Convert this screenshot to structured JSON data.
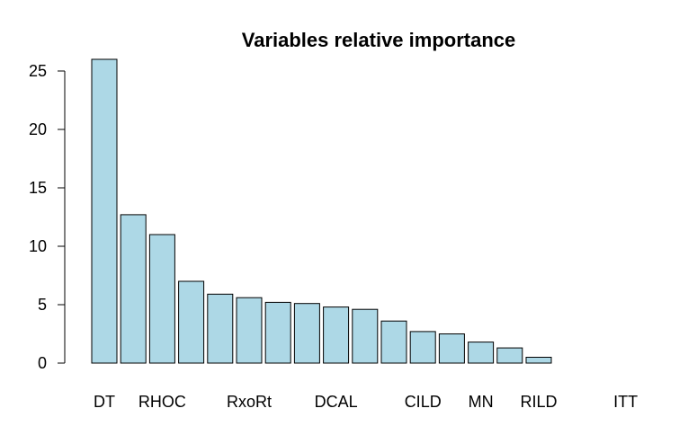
{
  "chart_data": {
    "type": "bar",
    "title": "Variables relative importance",
    "xlabel": "",
    "ylabel": "",
    "ylim": [
      0,
      26
    ],
    "yticks": [
      0,
      5,
      10,
      15,
      20,
      25
    ],
    "grid": false,
    "bar_color": "#add8e6",
    "bar_border_color": "#000000",
    "categories": [
      "DT",
      "",
      "RHOC",
      "",
      "",
      "RxoRt",
      "",
      "",
      "DCAL",
      "",
      "",
      "CILD",
      "",
      "MN",
      "",
      "RILD",
      "",
      "",
      "ITT",
      ""
    ],
    "values": [
      26.0,
      12.7,
      11.0,
      7.0,
      5.9,
      5.6,
      5.2,
      5.1,
      4.8,
      4.6,
      3.6,
      2.7,
      2.5,
      1.8,
      1.3,
      0.5,
      0.0,
      0.0,
      0.0,
      0.0
    ]
  }
}
